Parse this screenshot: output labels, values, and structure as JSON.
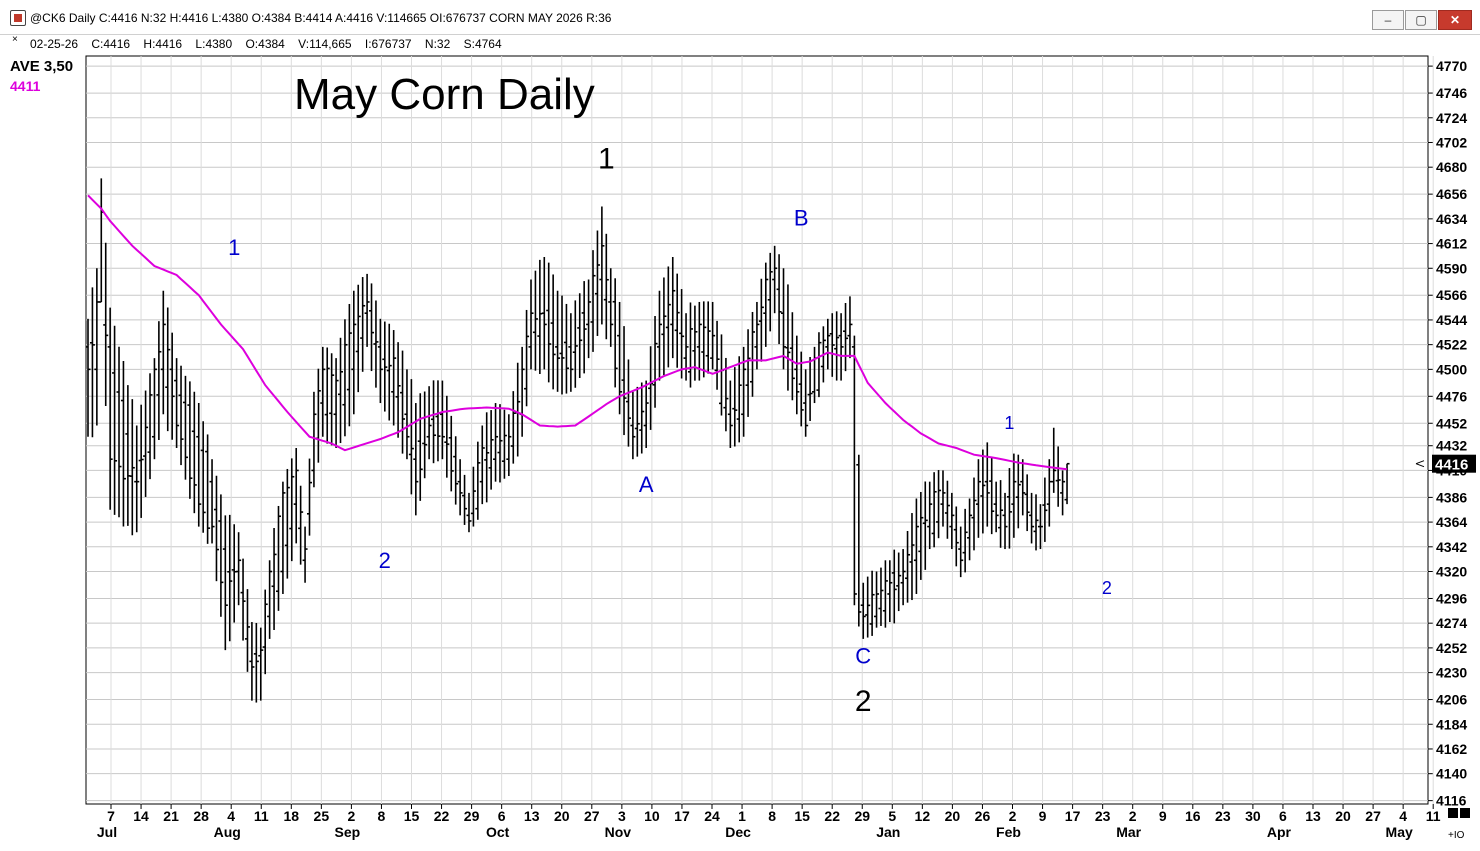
{
  "window": {
    "title": "@CK6 Daily C:4416 N:32 H:4416 L:4380 O:4384 B:4414 A:4416 V:114665 OI:676737 CORN MAY 2026 R:36",
    "minimize_glyph": "–",
    "maximize_glyph": "▢",
    "close_glyph": "✕"
  },
  "readout": {
    "x_glyph": "×",
    "text": "02-25-26    C:4416    H:4416    L:4380    O:4384    V:114,665    I:676737    N:32    S:4764"
  },
  "indicator": {
    "label": "AVE  3,50",
    "value": "4411",
    "color": "#dd00dd"
  },
  "corner": {
    "zoom_label": "+IO"
  },
  "chart_data": {
    "type": "ohlc",
    "title": "May Corn Daily",
    "xlabel": "",
    "ylabel": "",
    "ylim": [
      4113,
      4779
    ],
    "grid": true,
    "last_price": "4416",
    "price_color": "#000000",
    "ma_color": "#dd00dd",
    "ma_series_name": "AVE 3,50",
    "y_ticks": [
      "4116",
      "4140",
      "4162",
      "4184",
      "4206",
      "4230",
      "4252",
      "4274",
      "4296",
      "4320",
      "4342",
      "4364",
      "4386",
      "4410",
      "4432",
      "4452",
      "4476",
      "4500",
      "4522",
      "4544",
      "4566",
      "4590",
      "4612",
      "4634",
      "4656",
      "4680",
      "4702",
      "4724",
      "4746",
      "4770"
    ],
    "x_tick_labels": [
      "7",
      "14",
      "21",
      "28",
      "4",
      "11",
      "18",
      "25",
      "2",
      "8",
      "15",
      "22",
      "29",
      "6",
      "13",
      "20",
      "27",
      "3",
      "10",
      "17",
      "24",
      "1",
      "8",
      "15",
      "22",
      "29",
      "5",
      "12",
      "20",
      "26",
      "2",
      "9",
      "17",
      "23",
      "2",
      "9",
      "16",
      "23",
      "30",
      "6",
      "13",
      "20",
      "27",
      "4",
      "11"
    ],
    "month_labels": [
      "Jul",
      "Aug",
      "Sep",
      "Oct",
      "Nov",
      "Dec",
      "Jan",
      "Feb",
      "Mar",
      "Apr",
      "May"
    ],
    "ohlc_knots": [
      {
        "i": 0,
        "o": 4520,
        "h": 4545,
        "l": 4440,
        "c": 4500
      },
      {
        "i": 2,
        "o": 4500,
        "h": 4590,
        "l": 4450,
        "c": 4560
      },
      {
        "i": 3,
        "o": 4560,
        "h": 4670,
        "l": 4560,
        "c": 4640
      },
      {
        "i": 5,
        "o": 4520,
        "h": 4555,
        "l": 4375,
        "c": 4420
      },
      {
        "i": 11,
        "o": 4400,
        "h": 4450,
        "l": 4355,
        "c": 4400
      },
      {
        "i": 15,
        "o": 4440,
        "h": 4510,
        "l": 4420,
        "c": 4500
      },
      {
        "i": 17,
        "o": 4500,
        "h": 4570,
        "l": 4460,
        "c": 4540
      },
      {
        "i": 20,
        "o": 4490,
        "h": 4510,
        "l": 4430,
        "c": 4450
      },
      {
        "i": 25,
        "o": 4440,
        "h": 4470,
        "l": 4360,
        "c": 4380
      },
      {
        "i": 28,
        "o": 4400,
        "h": 4420,
        "l": 4345,
        "c": 4360
      },
      {
        "i": 31,
        "o": 4340,
        "h": 4370,
        "l": 4250,
        "c": 4290
      },
      {
        "i": 34,
        "o": 4320,
        "h": 4355,
        "l": 4290,
        "c": 4330
      },
      {
        "i": 37,
        "o": 4240,
        "h": 4275,
        "l": 4205,
        "c": 4235
      },
      {
        "i": 39,
        "o": 4245,
        "h": 4270,
        "l": 4205,
        "c": 4250
      },
      {
        "i": 41,
        "o": 4280,
        "h": 4330,
        "l": 4260,
        "c": 4320
      },
      {
        "i": 44,
        "o": 4320,
        "h": 4400,
        "l": 4300,
        "c": 4390
      },
      {
        "i": 47,
        "o": 4380,
        "h": 4430,
        "l": 4345,
        "c": 4410
      },
      {
        "i": 49,
        "o": 4330,
        "h": 4360,
        "l": 4310,
        "c": 4340
      },
      {
        "i": 51,
        "o": 4410,
        "h": 4480,
        "l": 4395,
        "c": 4460
      },
      {
        "i": 53,
        "o": 4470,
        "h": 4520,
        "l": 4440,
        "c": 4500
      },
      {
        "i": 56,
        "o": 4460,
        "h": 4510,
        "l": 4430,
        "c": 4490
      },
      {
        "i": 60,
        "o": 4500,
        "h": 4570,
        "l": 4460,
        "c": 4540
      },
      {
        "i": 63,
        "o": 4550,
        "h": 4585,
        "l": 4520,
        "c": 4560
      },
      {
        "i": 66,
        "o": 4520,
        "h": 4545,
        "l": 4470,
        "c": 4500
      },
      {
        "i": 69,
        "o": 4480,
        "h": 4535,
        "l": 4450,
        "c": 4510
      },
      {
        "i": 72,
        "o": 4460,
        "h": 4500,
        "l": 4420,
        "c": 4440
      },
      {
        "i": 74,
        "o": 4420,
        "h": 4470,
        "l": 4370,
        "c": 4400
      },
      {
        "i": 77,
        "o": 4440,
        "h": 4485,
        "l": 4420,
        "c": 4450
      },
      {
        "i": 80,
        "o": 4460,
        "h": 4490,
        "l": 4420,
        "c": 4440
      },
      {
        "i": 84,
        "o": 4400,
        "h": 4420,
        "l": 4370,
        "c": 4390
      },
      {
        "i": 86,
        "o": 4370,
        "h": 4390,
        "l": 4355,
        "c": 4365
      },
      {
        "i": 89,
        "o": 4400,
        "h": 4450,
        "l": 4380,
        "c": 4430
      },
      {
        "i": 92,
        "o": 4420,
        "h": 4470,
        "l": 4400,
        "c": 4440
      },
      {
        "i": 95,
        "o": 4420,
        "h": 4460,
        "l": 4405,
        "c": 4440
      },
      {
        "i": 98,
        "o": 4460,
        "h": 4520,
        "l": 4440,
        "c": 4500
      },
      {
        "i": 100,
        "o": 4520,
        "h": 4580,
        "l": 4500,
        "c": 4550
      },
      {
        "i": 103,
        "o": 4550,
        "h": 4600,
        "l": 4500,
        "c": 4540
      },
      {
        "i": 106,
        "o": 4520,
        "h": 4570,
        "l": 4480,
        "c": 4510
      },
      {
        "i": 109,
        "o": 4520,
        "h": 4550,
        "l": 4480,
        "c": 4500
      },
      {
        "i": 113,
        "o": 4540,
        "h": 4580,
        "l": 4510,
        "c": 4560
      },
      {
        "i": 116,
        "o": 4580,
        "h": 4645,
        "l": 4540,
        "c": 4610
      },
      {
        "i": 118,
        "o": 4560,
        "h": 4590,
        "l": 4520,
        "c": 4540
      },
      {
        "i": 120,
        "o": 4530,
        "h": 4560,
        "l": 4460,
        "c": 4480
      },
      {
        "i": 123,
        "o": 4450,
        "h": 4480,
        "l": 4420,
        "c": 4440
      },
      {
        "i": 126,
        "o": 4450,
        "h": 4490,
        "l": 4430,
        "c": 4470
      },
      {
        "i": 129,
        "o": 4520,
        "h": 4570,
        "l": 4490,
        "c": 4540
      },
      {
        "i": 132,
        "o": 4540,
        "h": 4600,
        "l": 4510,
        "c": 4570
      },
      {
        "i": 135,
        "o": 4510,
        "h": 4550,
        "l": 4490,
        "c": 4520
      },
      {
        "i": 138,
        "o": 4520,
        "h": 4560,
        "l": 4490,
        "c": 4540
      },
      {
        "i": 141,
        "o": 4510,
        "h": 4560,
        "l": 4500,
        "c": 4530
      },
      {
        "i": 145,
        "o": 4460,
        "h": 4490,
        "l": 4430,
        "c": 4450
      },
      {
        "i": 148,
        "o": 4460,
        "h": 4520,
        "l": 4440,
        "c": 4500
      },
      {
        "i": 151,
        "o": 4520,
        "h": 4560,
        "l": 4500,
        "c": 4540
      },
      {
        "i": 153,
        "o": 4550,
        "h": 4595,
        "l": 4520,
        "c": 4580
      },
      {
        "i": 155,
        "o": 4580,
        "h": 4610,
        "l": 4550,
        "c": 4590
      },
      {
        "i": 157,
        "o": 4550,
        "h": 4590,
        "l": 4500,
        "c": 4520
      },
      {
        "i": 160,
        "o": 4500,
        "h": 4530,
        "l": 4460,
        "c": 4480
      },
      {
        "i": 162,
        "o": 4470,
        "h": 4500,
        "l": 4440,
        "c": 4450
      },
      {
        "i": 164,
        "o": 4480,
        "h": 4520,
        "l": 4470,
        "c": 4510
      },
      {
        "i": 167,
        "o": 4520,
        "h": 4545,
        "l": 4500,
        "c": 4530
      },
      {
        "i": 170,
        "o": 4530,
        "h": 4550,
        "l": 4490,
        "c": 4520
      },
      {
        "i": 172,
        "o": 4530,
        "h": 4565,
        "l": 4510,
        "c": 4540
      },
      {
        "i": 173,
        "o": 4520,
        "h": 4530,
        "l": 4290,
        "c": 4300
      },
      {
        "i": 175,
        "o": 4290,
        "h": 4310,
        "l": 4260,
        "c": 4280
      },
      {
        "i": 178,
        "o": 4280,
        "h": 4320,
        "l": 4270,
        "c": 4300
      },
      {
        "i": 181,
        "o": 4300,
        "h": 4330,
        "l": 4275,
        "c": 4310
      },
      {
        "i": 184,
        "o": 4310,
        "h": 4340,
        "l": 4290,
        "c": 4320
      },
      {
        "i": 187,
        "o": 4330,
        "h": 4385,
        "l": 4300,
        "c": 4360
      },
      {
        "i": 190,
        "o": 4360,
        "h": 4400,
        "l": 4340,
        "c": 4380
      },
      {
        "i": 193,
        "o": 4380,
        "h": 4410,
        "l": 4360,
        "c": 4390
      },
      {
        "i": 195,
        "o": 4360,
        "h": 4390,
        "l": 4340,
        "c": 4370
      },
      {
        "i": 197,
        "o": 4340,
        "h": 4360,
        "l": 4315,
        "c": 4330
      },
      {
        "i": 199,
        "o": 4350,
        "h": 4385,
        "l": 4330,
        "c": 4370
      },
      {
        "i": 201,
        "o": 4380,
        "h": 4420,
        "l": 4350,
        "c": 4400
      },
      {
        "i": 203,
        "o": 4400,
        "h": 4435,
        "l": 4360,
        "c": 4390
      },
      {
        "i": 205,
        "o": 4380,
        "h": 4400,
        "l": 4355,
        "c": 4370
      },
      {
        "i": 207,
        "o": 4370,
        "h": 4390,
        "l": 4340,
        "c": 4360
      },
      {
        "i": 209,
        "o": 4380,
        "h": 4425,
        "l": 4350,
        "c": 4400
      },
      {
        "i": 211,
        "o": 4400,
        "h": 4420,
        "l": 4370,
        "c": 4390
      },
      {
        "i": 213,
        "o": 4370,
        "h": 4390,
        "l": 4345,
        "c": 4360
      },
      {
        "i": 215,
        "o": 4360,
        "h": 4380,
        "l": 4340,
        "c": 4360
      },
      {
        "i": 217,
        "o": 4380,
        "h": 4420,
        "l": 4360,
        "c": 4400
      },
      {
        "i": 218,
        "o": 4400,
        "h": 4448,
        "l": 4390,
        "c": 4410
      },
      {
        "i": 220,
        "o": 4390,
        "h": 4410,
        "l": 4370,
        "c": 4400
      },
      {
        "i": 221,
        "o": 4384,
        "h": 4416,
        "l": 4380,
        "c": 4416
      }
    ],
    "ma_knots": [
      {
        "i": 0,
        "v": 4655
      },
      {
        "i": 3,
        "v": 4643
      },
      {
        "i": 5,
        "v": 4632
      },
      {
        "i": 10,
        "v": 4610
      },
      {
        "i": 15,
        "v": 4592
      },
      {
        "i": 20,
        "v": 4584
      },
      {
        "i": 25,
        "v": 4566
      },
      {
        "i": 30,
        "v": 4540
      },
      {
        "i": 35,
        "v": 4518
      },
      {
        "i": 40,
        "v": 4486
      },
      {
        "i": 45,
        "v": 4462
      },
      {
        "i": 50,
        "v": 4440
      },
      {
        "i": 55,
        "v": 4434
      },
      {
        "i": 58,
        "v": 4428
      },
      {
        "i": 62,
        "v": 4433
      },
      {
        "i": 66,
        "v": 4438
      },
      {
        "i": 70,
        "v": 4444
      },
      {
        "i": 75,
        "v": 4456
      },
      {
        "i": 80,
        "v": 4462
      },
      {
        "i": 85,
        "v": 4465
      },
      {
        "i": 90,
        "v": 4466
      },
      {
        "i": 95,
        "v": 4465
      },
      {
        "i": 98,
        "v": 4460
      },
      {
        "i": 102,
        "v": 4450
      },
      {
        "i": 106,
        "v": 4449
      },
      {
        "i": 110,
        "v": 4450
      },
      {
        "i": 113,
        "v": 4458
      },
      {
        "i": 117,
        "v": 4469
      },
      {
        "i": 120,
        "v": 4476
      },
      {
        "i": 125,
        "v": 4484
      },
      {
        "i": 130,
        "v": 4494
      },
      {
        "i": 134,
        "v": 4500
      },
      {
        "i": 137,
        "v": 4502
      },
      {
        "i": 141,
        "v": 4496
      },
      {
        "i": 145,
        "v": 4502
      },
      {
        "i": 149,
        "v": 4508
      },
      {
        "i": 153,
        "v": 4508
      },
      {
        "i": 157,
        "v": 4512
      },
      {
        "i": 160,
        "v": 4505
      },
      {
        "i": 163,
        "v": 4507
      },
      {
        "i": 167,
        "v": 4515
      },
      {
        "i": 170,
        "v": 4512
      },
      {
        "i": 173,
        "v": 4512
      },
      {
        "i": 176,
        "v": 4488
      },
      {
        "i": 180,
        "v": 4470
      },
      {
        "i": 184,
        "v": 4455
      },
      {
        "i": 188,
        "v": 4443
      },
      {
        "i": 192,
        "v": 4434
      },
      {
        "i": 196,
        "v": 4430
      },
      {
        "i": 200,
        "v": 4424
      },
      {
        "i": 205,
        "v": 4421
      },
      {
        "i": 210,
        "v": 4417
      },
      {
        "i": 215,
        "v": 4414
      },
      {
        "i": 221,
        "v": 4411
      }
    ],
    "wave_labels": [
      {
        "text": "1",
        "i": 33,
        "price": 4602,
        "color": "#0000cc",
        "size": "m"
      },
      {
        "text": "2",
        "i": 67,
        "price": 4323,
        "color": "#0000cc",
        "size": "m"
      },
      {
        "text": "1",
        "i": 117,
        "price": 4679,
        "color": "#000000",
        "size": "l"
      },
      {
        "text": "A",
        "i": 126,
        "price": 4391,
        "color": "#0000cc",
        "size": "m"
      },
      {
        "text": "B",
        "i": 161,
        "price": 4628,
        "color": "#0000cc",
        "size": "m"
      },
      {
        "text": "C",
        "i": 175,
        "price": 4238,
        "color": "#0000cc",
        "size": "m"
      },
      {
        "text": "2",
        "i": 175,
        "price": 4196,
        "color": "#000000",
        "size": "l"
      },
      {
        "text": "1",
        "i": 208,
        "price": 4447,
        "color": "#0000cc",
        "size": "s"
      },
      {
        "text": "2",
        "i": 230,
        "price": 4300,
        "color": "#0000cc",
        "size": "s"
      }
    ]
  }
}
